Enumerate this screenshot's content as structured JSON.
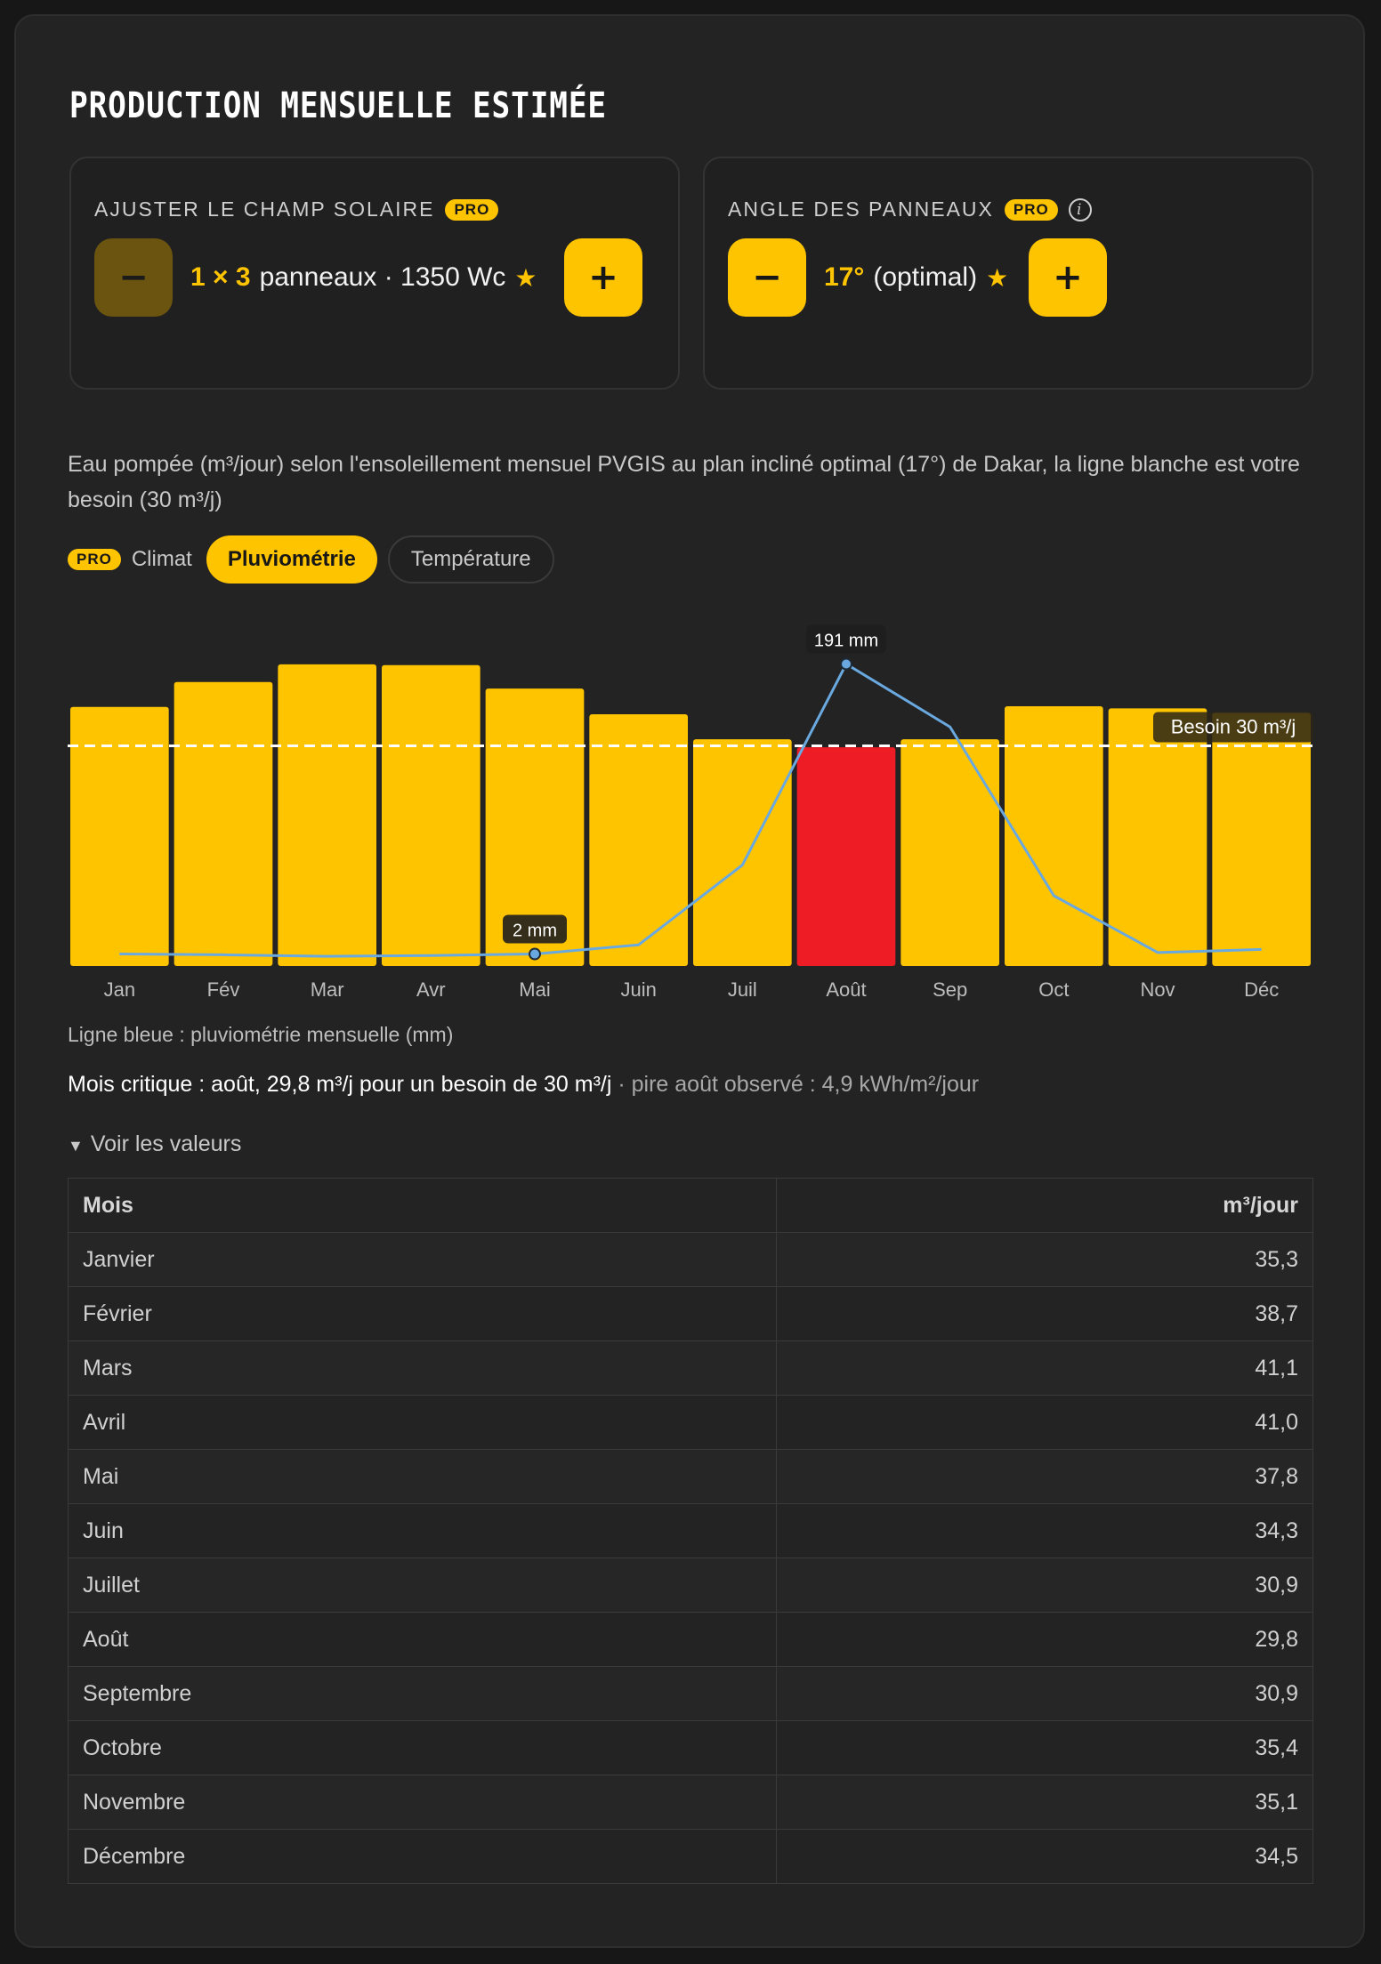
{
  "title": "PRODUCTION MENSUELLE ESTIMÉE",
  "solar_field": {
    "label": "AJUSTER LE CHAMP SOLAIRE",
    "badge": "PRO",
    "minus": "−",
    "plus": "+",
    "count": "1 × 3",
    "text": "panneaux · 1350 Wc",
    "star": "★"
  },
  "angle": {
    "label": "ANGLE DES PANNEAUX",
    "badge": "PRO",
    "info": "i",
    "minus": "−",
    "plus": "+",
    "value": "17°",
    "text": "(optimal)",
    "star": "★"
  },
  "description": "Eau pompée (m³/jour) selon l'ensoleillement mensuel PVGIS au plan incliné optimal (17°) de Dakar, la ligne blanche est votre besoin (30 m³/j)",
  "climate": {
    "badge": "PRO",
    "label": "Climat",
    "options": [
      "Pluviométrie",
      "Température"
    ],
    "selected": "Pluviométrie"
  },
  "chart_data": {
    "type": "bar",
    "categories": [
      "Jan",
      "Fév",
      "Mar",
      "Avr",
      "Mai",
      "Juin",
      "Juil",
      "Août",
      "Sep",
      "Oct",
      "Nov",
      "Déc"
    ],
    "values": [
      35.3,
      38.7,
      41.1,
      41.0,
      37.8,
      34.3,
      30.9,
      29.8,
      30.9,
      35.4,
      35.1,
      34.5
    ],
    "highlight_index": 7,
    "threshold": 30,
    "threshold_label": "Besoin 30 m³/j",
    "ylim": [
      0,
      48
    ],
    "rain": {
      "type": "line",
      "values_mm": [
        2,
        1.5,
        0.5,
        1,
        2,
        8,
        60,
        191,
        150,
        40,
        3,
        5
      ],
      "ylim": [
        0,
        200
      ],
      "labels": [
        {
          "index": 4,
          "text": "2 mm"
        },
        {
          "index": 7,
          "text": "191 mm"
        }
      ]
    },
    "colors": {
      "bar": "#ffc400",
      "critical": "#ee1c25",
      "line": "#6aa9e0",
      "threshold": "#ffffff"
    }
  },
  "legend_note": "Ligne bleue : pluviométrie mensuelle (mm)",
  "critical": {
    "main": "Mois critique : août, 29,8 m³/j pour un besoin de 30 m³/j",
    "muted": " · pire août observé : 4,9 kWh/m²/jour"
  },
  "values_toggle": {
    "icon": "▼",
    "label": "Voir les valeurs"
  },
  "table": {
    "headers": [
      "Mois",
      "m³/jour"
    ],
    "rows": [
      [
        "Janvier",
        "35,3"
      ],
      [
        "Février",
        "38,7"
      ],
      [
        "Mars",
        "41,1"
      ],
      [
        "Avril",
        "41,0"
      ],
      [
        "Mai",
        "37,8"
      ],
      [
        "Juin",
        "34,3"
      ],
      [
        "Juillet",
        "30,9"
      ],
      [
        "Août",
        "29,8"
      ],
      [
        "Septembre",
        "30,9"
      ],
      [
        "Octobre",
        "35,4"
      ],
      [
        "Novembre",
        "35,1"
      ],
      [
        "Décembre",
        "34,5"
      ]
    ]
  }
}
